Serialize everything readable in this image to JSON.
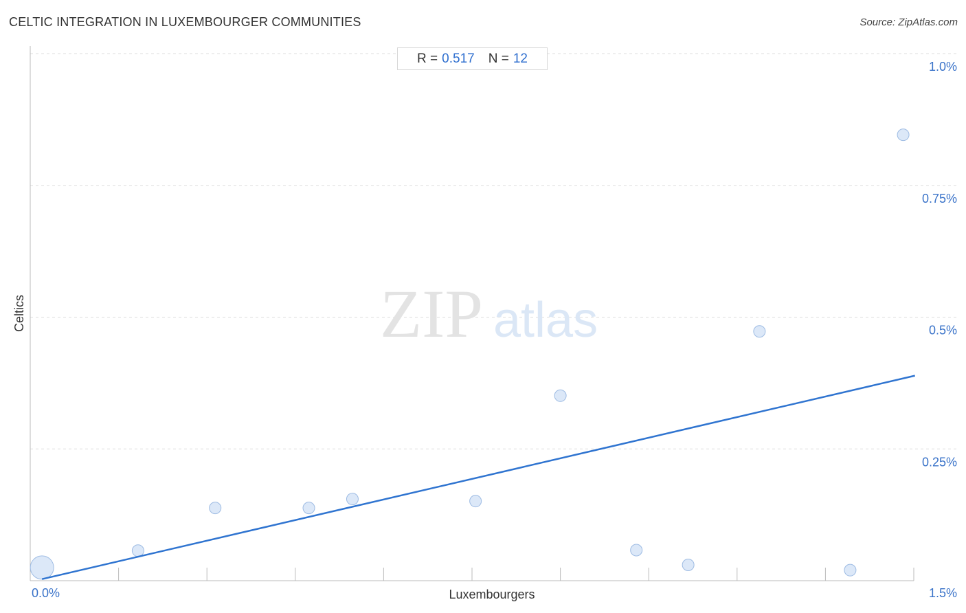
{
  "header": {
    "title": "CELTIC INTEGRATION IN LUXEMBOURGER COMMUNITIES",
    "source": "Source: ZipAtlas.com"
  },
  "stats": {
    "r_label": "R =",
    "r_value": "0.517",
    "n_label": "N =",
    "n_value": "12"
  },
  "watermark": {
    "zip": "ZIP",
    "atlas": "atlas"
  },
  "colors": {
    "trend_line": "#2f74d0",
    "point_fill": "#d6e4f7",
    "point_stroke": "#9dbbe3",
    "tick_text": "#3a73c9",
    "grid": "#dddddd"
  },
  "chart_data": {
    "type": "scatter",
    "title": "CELTIC INTEGRATION IN LUXEMBOURGER COMMUNITIES",
    "xlabel": "Luxembourgers",
    "ylabel": "Celtics",
    "xlim": [
      0,
      1.5
    ],
    "ylim": [
      0,
      1.0
    ],
    "x_tick_labels": [
      "0.0%",
      "1.5%"
    ],
    "y_ticks": [
      {
        "value": 0.25,
        "label": "0.25%"
      },
      {
        "value": 0.5,
        "label": "0.5%"
      },
      {
        "value": 0.75,
        "label": "0.75%"
      },
      {
        "value": 1.0,
        "label": "1.0%"
      }
    ],
    "grid": "horizontal dashed",
    "points": [
      {
        "x": 0.02,
        "y": 0.025,
        "size": "large"
      },
      {
        "x": 0.183,
        "y": 0.057,
        "size": "small"
      },
      {
        "x": 0.314,
        "y": 0.138,
        "size": "small"
      },
      {
        "x": 0.473,
        "y": 0.138,
        "size": "small"
      },
      {
        "x": 0.547,
        "y": 0.155,
        "size": "small"
      },
      {
        "x": 0.756,
        "y": 0.151,
        "size": "small"
      },
      {
        "x": 0.9,
        "y": 0.351,
        "size": "small"
      },
      {
        "x": 1.029,
        "y": 0.058,
        "size": "small"
      },
      {
        "x": 1.117,
        "y": 0.03,
        "size": "small"
      },
      {
        "x": 1.238,
        "y": 0.473,
        "size": "small"
      },
      {
        "x": 1.392,
        "y": 0.02,
        "size": "small"
      },
      {
        "x": 1.482,
        "y": 0.846,
        "size": "small"
      }
    ],
    "trend_line": {
      "x": [
        0.02,
        1.502
      ],
      "y": [
        0.003,
        0.389
      ]
    }
  }
}
